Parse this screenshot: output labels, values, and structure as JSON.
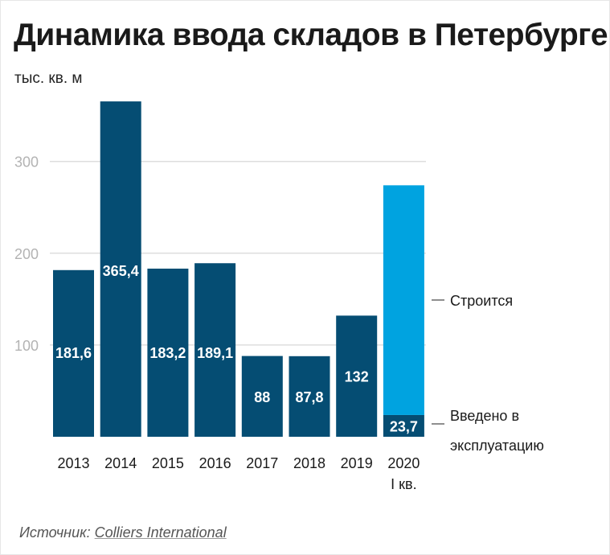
{
  "title": "Динамика ввода складов в Петербурге",
  "unit": "тыс. кв. м",
  "source": {
    "prefix": "Источник: ",
    "org": "Colliers International"
  },
  "colors": {
    "commissioned": "#054d73",
    "under_construction": "#00a3e0",
    "grid": "#dedede",
    "tick_label": "#b3b3b3",
    "bar_label": "#ffffff"
  },
  "chart_data": {
    "type": "bar",
    "stacked": true,
    "title": "Динамика ввода складов в Петербурге",
    "ylabel": "тыс. кв. м",
    "ylim": [
      0,
      370
    ],
    "yticks": [
      100,
      200,
      300
    ],
    "grid": true,
    "categories": [
      "2013",
      "2014",
      "2015",
      "2016",
      "2017",
      "2018",
      "2019",
      "2020"
    ],
    "category_sublabels": [
      "",
      "",
      "",
      "",
      "",
      "",
      "",
      "I кв."
    ],
    "series": [
      {
        "name": "Введено в эксплуатацию",
        "values": [
          181.6,
          365.4,
          183.2,
          189.1,
          88,
          87.8,
          132,
          23.7
        ],
        "labels": [
          "181,6",
          "365,4",
          "183,2",
          "189,1",
          "88",
          "87,8",
          "132",
          "23,7"
        ]
      },
      {
        "name": "Строится",
        "values": [
          0,
          0,
          0,
          0,
          0,
          0,
          0,
          250.3
        ],
        "labels": [
          "",
          "",
          "",
          "",
          "",
          "",
          "",
          ""
        ]
      }
    ],
    "legend_names": [
      "Строится",
      "Введено в\nэксплуатацию"
    ],
    "legend_placement": "right"
  }
}
